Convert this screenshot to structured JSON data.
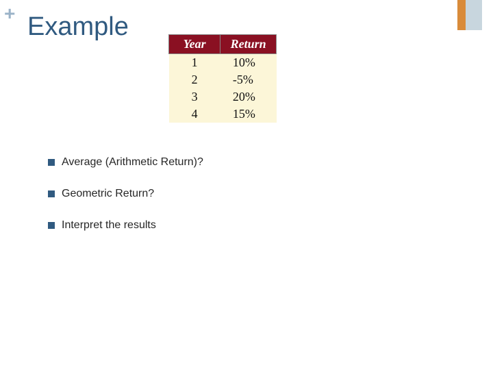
{
  "decor": {
    "plus": "+"
  },
  "title": "Example",
  "accent": {
    "orange": "#d98b3a",
    "blue": "#c8d6de"
  },
  "table": {
    "header_bg": "#8a1022",
    "header_fg": "#ffffff",
    "cell_bg": "#fcf6d8",
    "columns": [
      "Year",
      "Return"
    ],
    "rows": [
      {
        "year": "1",
        "return": "10%"
      },
      {
        "year": "2",
        "return": "-5%"
      },
      {
        "year": "3",
        "return": "20%"
      },
      {
        "year": "4",
        "return": "15%"
      }
    ]
  },
  "bullets": [
    "Average (Arithmetic Return)?",
    "Geometric Return?",
    "Interpret the results"
  ]
}
